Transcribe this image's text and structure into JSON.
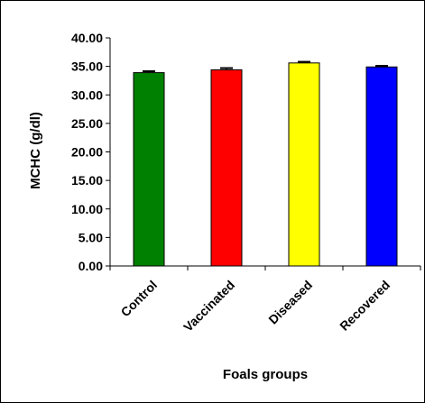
{
  "chart_data": {
    "type": "bar",
    "categories": [
      "Control",
      "Vaccinated",
      "Diseased",
      "Recovered"
    ],
    "values": [
      33.9,
      34.4,
      35.6,
      34.9
    ],
    "errors": [
      0.25,
      0.3,
      0.2,
      0.2
    ],
    "colors": [
      "#008000",
      "#ff0000",
      "#ffff00",
      "#0000ff"
    ],
    "xlabel": "Foals groups",
    "ylabel": "MCHC (g/dl)",
    "ylim": [
      0,
      40
    ],
    "yticks": [
      "0.00",
      "5.00",
      "10.00",
      "15.00",
      "20.00",
      "25.00",
      "30.00",
      "35.00",
      "40.00"
    ],
    "grid": false,
    "legend": "none"
  }
}
